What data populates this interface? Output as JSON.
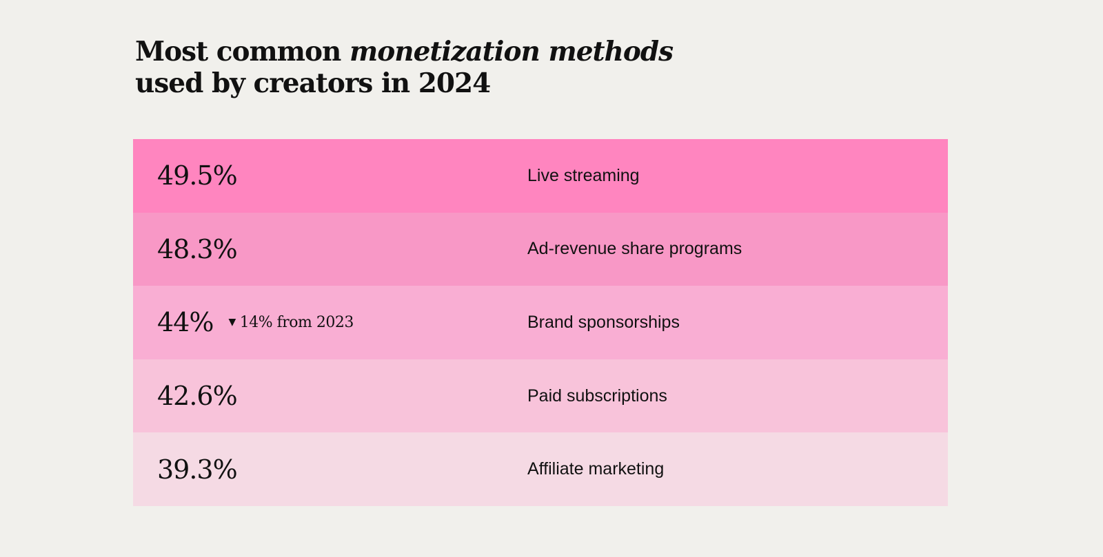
{
  "title": {
    "part1": "Most common ",
    "italic": "monetization methods",
    "part2": "used by creators in 2024"
  },
  "chart_data": {
    "type": "table",
    "rows": [
      {
        "value": "49.5%",
        "label": "Live streaming",
        "color": "#ff85bf"
      },
      {
        "value": "48.3%",
        "label": "Ad-revenue share programs",
        "color": "#f898c6"
      },
      {
        "value": "44%",
        "label": "Brand sponsorships",
        "color": "#f9aed3",
        "note": "14% from 2023",
        "note_icon": "triangle-down-icon"
      },
      {
        "value": "42.6%",
        "label": "Paid subscriptions",
        "color": "#f8c3da"
      },
      {
        "value": "39.3%",
        "label": "Affiliate marketing",
        "color": "#f5dae4"
      }
    ]
  }
}
